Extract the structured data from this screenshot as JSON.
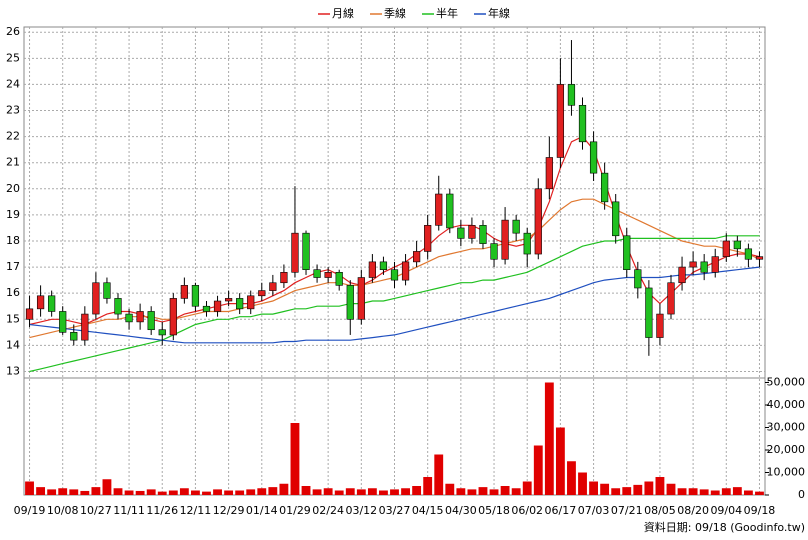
{
  "chart_data": [
    {
      "type": "candlestick",
      "categories": [
        "09/19",
        null,
        null,
        "10/08",
        null,
        null,
        "10/27",
        null,
        null,
        "11/11",
        null,
        null,
        "11/26",
        null,
        null,
        "12/11",
        null,
        null,
        "12/29",
        null,
        null,
        "01/14",
        null,
        null,
        "01/29",
        null,
        null,
        "02/24",
        null,
        null,
        "03/12",
        null,
        null,
        "03/27",
        null,
        null,
        "04/15",
        null,
        null,
        "04/30",
        null,
        null,
        "05/18",
        null,
        null,
        "06/02",
        null,
        null,
        "06/17",
        null,
        null,
        "07/03",
        null,
        null,
        "07/21",
        null,
        null,
        "08/05",
        null,
        null,
        "08/20",
        null,
        null,
        "09/04",
        null,
        null,
        "09/18"
      ],
      "open": [
        15.0,
        15.4,
        15.9,
        15.3,
        14.5,
        14.2,
        15.2,
        16.4,
        15.8,
        15.2,
        14.9,
        15.3,
        14.6,
        14.4,
        15.8,
        16.3,
        15.5,
        15.3,
        15.7,
        15.8,
        15.4,
        15.9,
        16.1,
        16.4,
        16.8,
        18.3,
        16.9,
        16.6,
        16.8,
        16.3,
        15.0,
        16.6,
        17.2,
        16.9,
        16.5,
        17.2,
        17.6,
        18.6,
        19.8,
        18.5,
        18.1,
        18.6,
        17.9,
        17.3,
        18.8,
        18.3,
        17.5,
        20.0,
        21.2,
        24.0,
        23.2,
        21.8,
        20.6,
        19.5,
        18.2,
        16.9,
        16.2,
        14.3,
        15.2,
        16.4,
        17.0,
        17.2,
        16.8,
        17.4,
        18.0,
        17.7,
        17.3
      ],
      "high": [
        15.9,
        16.3,
        16.1,
        15.5,
        14.8,
        15.5,
        16.8,
        16.6,
        16.0,
        15.4,
        15.6,
        15.5,
        14.9,
        16.0,
        16.6,
        16.4,
        15.7,
        15.9,
        16.1,
        16.0,
        16.1,
        16.4,
        16.7,
        17.1,
        20.1,
        18.4,
        17.1,
        17.0,
        16.9,
        16.5,
        16.9,
        17.5,
        17.4,
        17.2,
        17.5,
        18.0,
        19.0,
        20.5,
        20.0,
        18.8,
        18.9,
        18.8,
        18.1,
        19.3,
        19.0,
        18.5,
        20.4,
        22.0,
        25.0,
        25.7,
        23.5,
        22.2,
        21.0,
        19.8,
        18.5,
        17.2,
        16.5,
        15.6,
        16.7,
        17.4,
        17.6,
        17.5,
        17.7,
        18.3,
        18.2,
        17.9,
        17.6
      ],
      "low": [
        14.7,
        15.1,
        15.1,
        14.4,
        14.0,
        14.0,
        15.0,
        15.6,
        15.0,
        14.6,
        14.6,
        14.4,
        14.0,
        14.2,
        15.6,
        15.3,
        15.1,
        15.1,
        15.5,
        15.2,
        15.2,
        15.7,
        15.9,
        16.2,
        16.6,
        16.7,
        16.4,
        16.4,
        16.1,
        14.4,
        14.8,
        16.4,
        16.7,
        16.2,
        16.3,
        17.0,
        17.3,
        18.4,
        18.3,
        17.8,
        17.9,
        17.7,
        17.0,
        17.1,
        18.0,
        17.0,
        17.3,
        19.6,
        20.8,
        22.8,
        21.5,
        20.3,
        19.2,
        17.9,
        16.6,
        15.8,
        13.6,
        14.0,
        15.0,
        16.1,
        16.7,
        16.5,
        16.6,
        17.2,
        17.4,
        17.0,
        17.0
      ],
      "close": [
        15.4,
        15.9,
        15.3,
        14.5,
        14.2,
        15.2,
        16.4,
        15.8,
        15.2,
        14.9,
        15.3,
        14.6,
        14.4,
        15.8,
        16.3,
        15.5,
        15.3,
        15.7,
        15.8,
        15.4,
        15.9,
        16.1,
        16.4,
        16.8,
        18.3,
        16.9,
        16.6,
        16.8,
        16.3,
        15.0,
        16.6,
        17.2,
        16.9,
        16.5,
        17.2,
        17.6,
        18.6,
        19.8,
        18.5,
        18.1,
        18.6,
        17.9,
        17.3,
        18.8,
        18.3,
        17.5,
        20.0,
        21.2,
        24.0,
        23.2,
        21.8,
        20.6,
        19.5,
        18.2,
        16.9,
        16.2,
        14.3,
        15.2,
        16.4,
        17.0,
        17.2,
        16.8,
        17.4,
        18.0,
        17.7,
        17.3,
        17.4
      ],
      "up_color": "#e02020",
      "down_color": "#20c020",
      "series": [
        {
          "name": "月線",
          "color": "#e02020",
          "values": [
            14.8,
            14.9,
            15.0,
            15.0,
            14.9,
            14.8,
            15.0,
            15.2,
            15.3,
            15.3,
            15.2,
            15.0,
            14.9,
            15.0,
            15.2,
            15.3,
            15.4,
            15.5,
            15.6,
            15.6,
            15.6,
            15.7,
            15.9,
            16.1,
            16.4,
            16.6,
            16.8,
            16.9,
            16.7,
            16.4,
            16.3,
            16.5,
            16.8,
            17.0,
            17.2,
            17.5,
            17.8,
            18.2,
            18.5,
            18.6,
            18.6,
            18.4,
            18.1,
            17.9,
            17.8,
            17.9,
            18.5,
            19.5,
            20.8,
            21.8,
            22.0,
            21.5,
            20.3,
            19.0,
            17.8,
            16.8,
            16.0,
            15.6,
            16.0,
            16.4,
            16.8,
            17.0,
            17.2,
            17.4,
            17.5,
            17.5,
            17.4
          ]
        },
        {
          "name": "季線",
          "color": "#e07830",
          "values": [
            14.3,
            14.4,
            14.5,
            14.6,
            14.7,
            14.8,
            14.9,
            15.0,
            15.0,
            15.1,
            15.1,
            15.1,
            15.0,
            15.0,
            15.1,
            15.2,
            15.3,
            15.3,
            15.3,
            15.4,
            15.5,
            15.6,
            15.7,
            15.9,
            16.1,
            16.2,
            16.3,
            16.4,
            16.4,
            16.3,
            16.3,
            16.4,
            16.5,
            16.6,
            16.8,
            17.0,
            17.2,
            17.4,
            17.5,
            17.6,
            17.7,
            17.7,
            17.8,
            17.9,
            18.0,
            18.1,
            18.4,
            18.8,
            19.2,
            19.5,
            19.6,
            19.6,
            19.4,
            19.2,
            19.0,
            18.8,
            18.6,
            18.4,
            18.2,
            18.0,
            17.9,
            17.8,
            17.8,
            17.7,
            17.6,
            17.5,
            17.3
          ]
        },
        {
          "name": "半年",
          "color": "#20c020",
          "values": [
            13.0,
            13.1,
            13.2,
            13.3,
            13.4,
            13.5,
            13.6,
            13.7,
            13.8,
            13.9,
            14.0,
            14.1,
            14.2,
            14.4,
            14.6,
            14.8,
            14.9,
            15.0,
            15.0,
            15.1,
            15.1,
            15.2,
            15.2,
            15.3,
            15.4,
            15.4,
            15.5,
            15.5,
            15.5,
            15.6,
            15.6,
            15.7,
            15.7,
            15.8,
            15.9,
            16.0,
            16.1,
            16.2,
            16.3,
            16.4,
            16.4,
            16.5,
            16.5,
            16.6,
            16.7,
            16.8,
            17.0,
            17.2,
            17.4,
            17.6,
            17.8,
            17.9,
            18.0,
            18.0,
            18.1,
            18.1,
            18.1,
            18.1,
            18.1,
            18.1,
            18.1,
            18.1,
            18.1,
            18.2,
            18.2,
            18.2,
            18.2
          ]
        },
        {
          "name": "年線",
          "color": "#2050c0",
          "values": [
            14.8,
            14.75,
            14.7,
            14.65,
            14.6,
            14.55,
            14.5,
            14.45,
            14.4,
            14.35,
            14.3,
            14.25,
            14.2,
            14.15,
            14.1,
            14.1,
            14.1,
            14.1,
            14.1,
            14.1,
            14.1,
            14.1,
            14.1,
            14.15,
            14.15,
            14.2,
            14.2,
            14.2,
            14.2,
            14.2,
            14.25,
            14.3,
            14.35,
            14.4,
            14.5,
            14.6,
            14.7,
            14.8,
            14.9,
            15.0,
            15.1,
            15.2,
            15.3,
            15.4,
            15.5,
            15.6,
            15.7,
            15.8,
            15.95,
            16.1,
            16.25,
            16.4,
            16.5,
            16.55,
            16.6,
            16.6,
            16.6,
            16.6,
            16.65,
            16.7,
            16.7,
            16.75,
            16.8,
            16.85,
            16.9,
            16.95,
            17.0
          ]
        }
      ],
      "ylim": [
        12.75,
        26.2
      ],
      "yticks": [
        13,
        14,
        15,
        16,
        17,
        18,
        19,
        20,
        21,
        22,
        23,
        24,
        25,
        26
      ],
      "grid": true
    },
    {
      "type": "bar",
      "color": "#e00000",
      "values": [
        6000,
        3500,
        2500,
        3000,
        2500,
        1800,
        3500,
        7000,
        3000,
        2000,
        1800,
        2500,
        1500,
        2000,
        3000,
        2000,
        1500,
        2500,
        2000,
        2000,
        2500,
        3000,
        3500,
        5000,
        32000,
        4000,
        2500,
        3000,
        2000,
        3000,
        2500,
        3000,
        2000,
        2500,
        3000,
        4000,
        8000,
        18000,
        5000,
        3000,
        2500,
        3500,
        2500,
        4000,
        3000,
        6000,
        22000,
        50000,
        30000,
        15000,
        10000,
        6000,
        5000,
        3000,
        3500,
        4500,
        6000,
        8000,
        5000,
        3000,
        3000,
        2500,
        2000,
        3000,
        3500,
        2000,
        1500
      ],
      "ylim": [
        0,
        52000
      ],
      "yticks": [
        0,
        {
          "value": 10000,
          "label": "10,000"
        },
        {
          "value": 20000,
          "label": "20,000"
        },
        {
          "value": 30000,
          "label": "30,000"
        },
        {
          "value": 40000,
          "label": "40,000"
        },
        {
          "value": 50000,
          "label": "50,000"
        }
      ]
    }
  ],
  "footer": "資料日期: 09/18  (Goodinfo.tw)"
}
